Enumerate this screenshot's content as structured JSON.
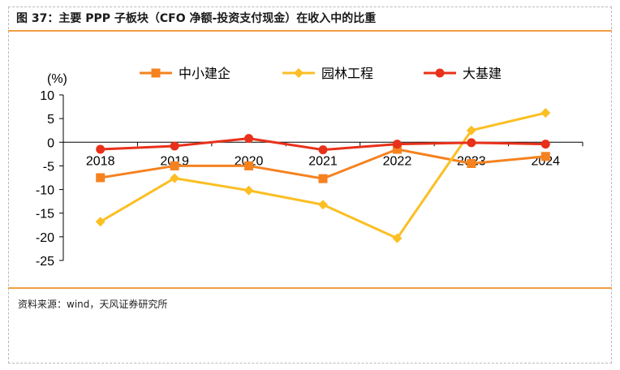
{
  "figure": {
    "title": "图 37：主要 PPP 子板块（CFO 净额-投资支付现金）在收入中的比重",
    "source": "资料来源：wind，天风证券研究所"
  },
  "chart_data": {
    "type": "line",
    "ylabel": "(%)",
    "categories": [
      "2018",
      "2019",
      "2020",
      "2021",
      "2022",
      "2023",
      "2024"
    ],
    "ylim": [
      -25,
      10
    ],
    "yticks": [
      10,
      5,
      0,
      -5,
      -10,
      -15,
      -20,
      -25
    ],
    "legend_position": "top",
    "grid": false,
    "series": [
      {
        "name": "中小建企",
        "color": "#f5821f",
        "marker": "square",
        "values": [
          -7.5,
          -5.0,
          -5.0,
          -7.7,
          -1.5,
          -4.5,
          -3.0
        ]
      },
      {
        "name": "园林工程",
        "color": "#fbbf24",
        "marker": "diamond",
        "values": [
          -16.8,
          -7.6,
          -10.2,
          -13.2,
          -20.3,
          2.5,
          6.2
        ]
      },
      {
        "name": "大基建",
        "color": "#e8311a",
        "marker": "circle",
        "values": [
          -1.5,
          -0.8,
          0.8,
          -1.6,
          -0.4,
          -0.1,
          -0.4
        ]
      }
    ]
  }
}
